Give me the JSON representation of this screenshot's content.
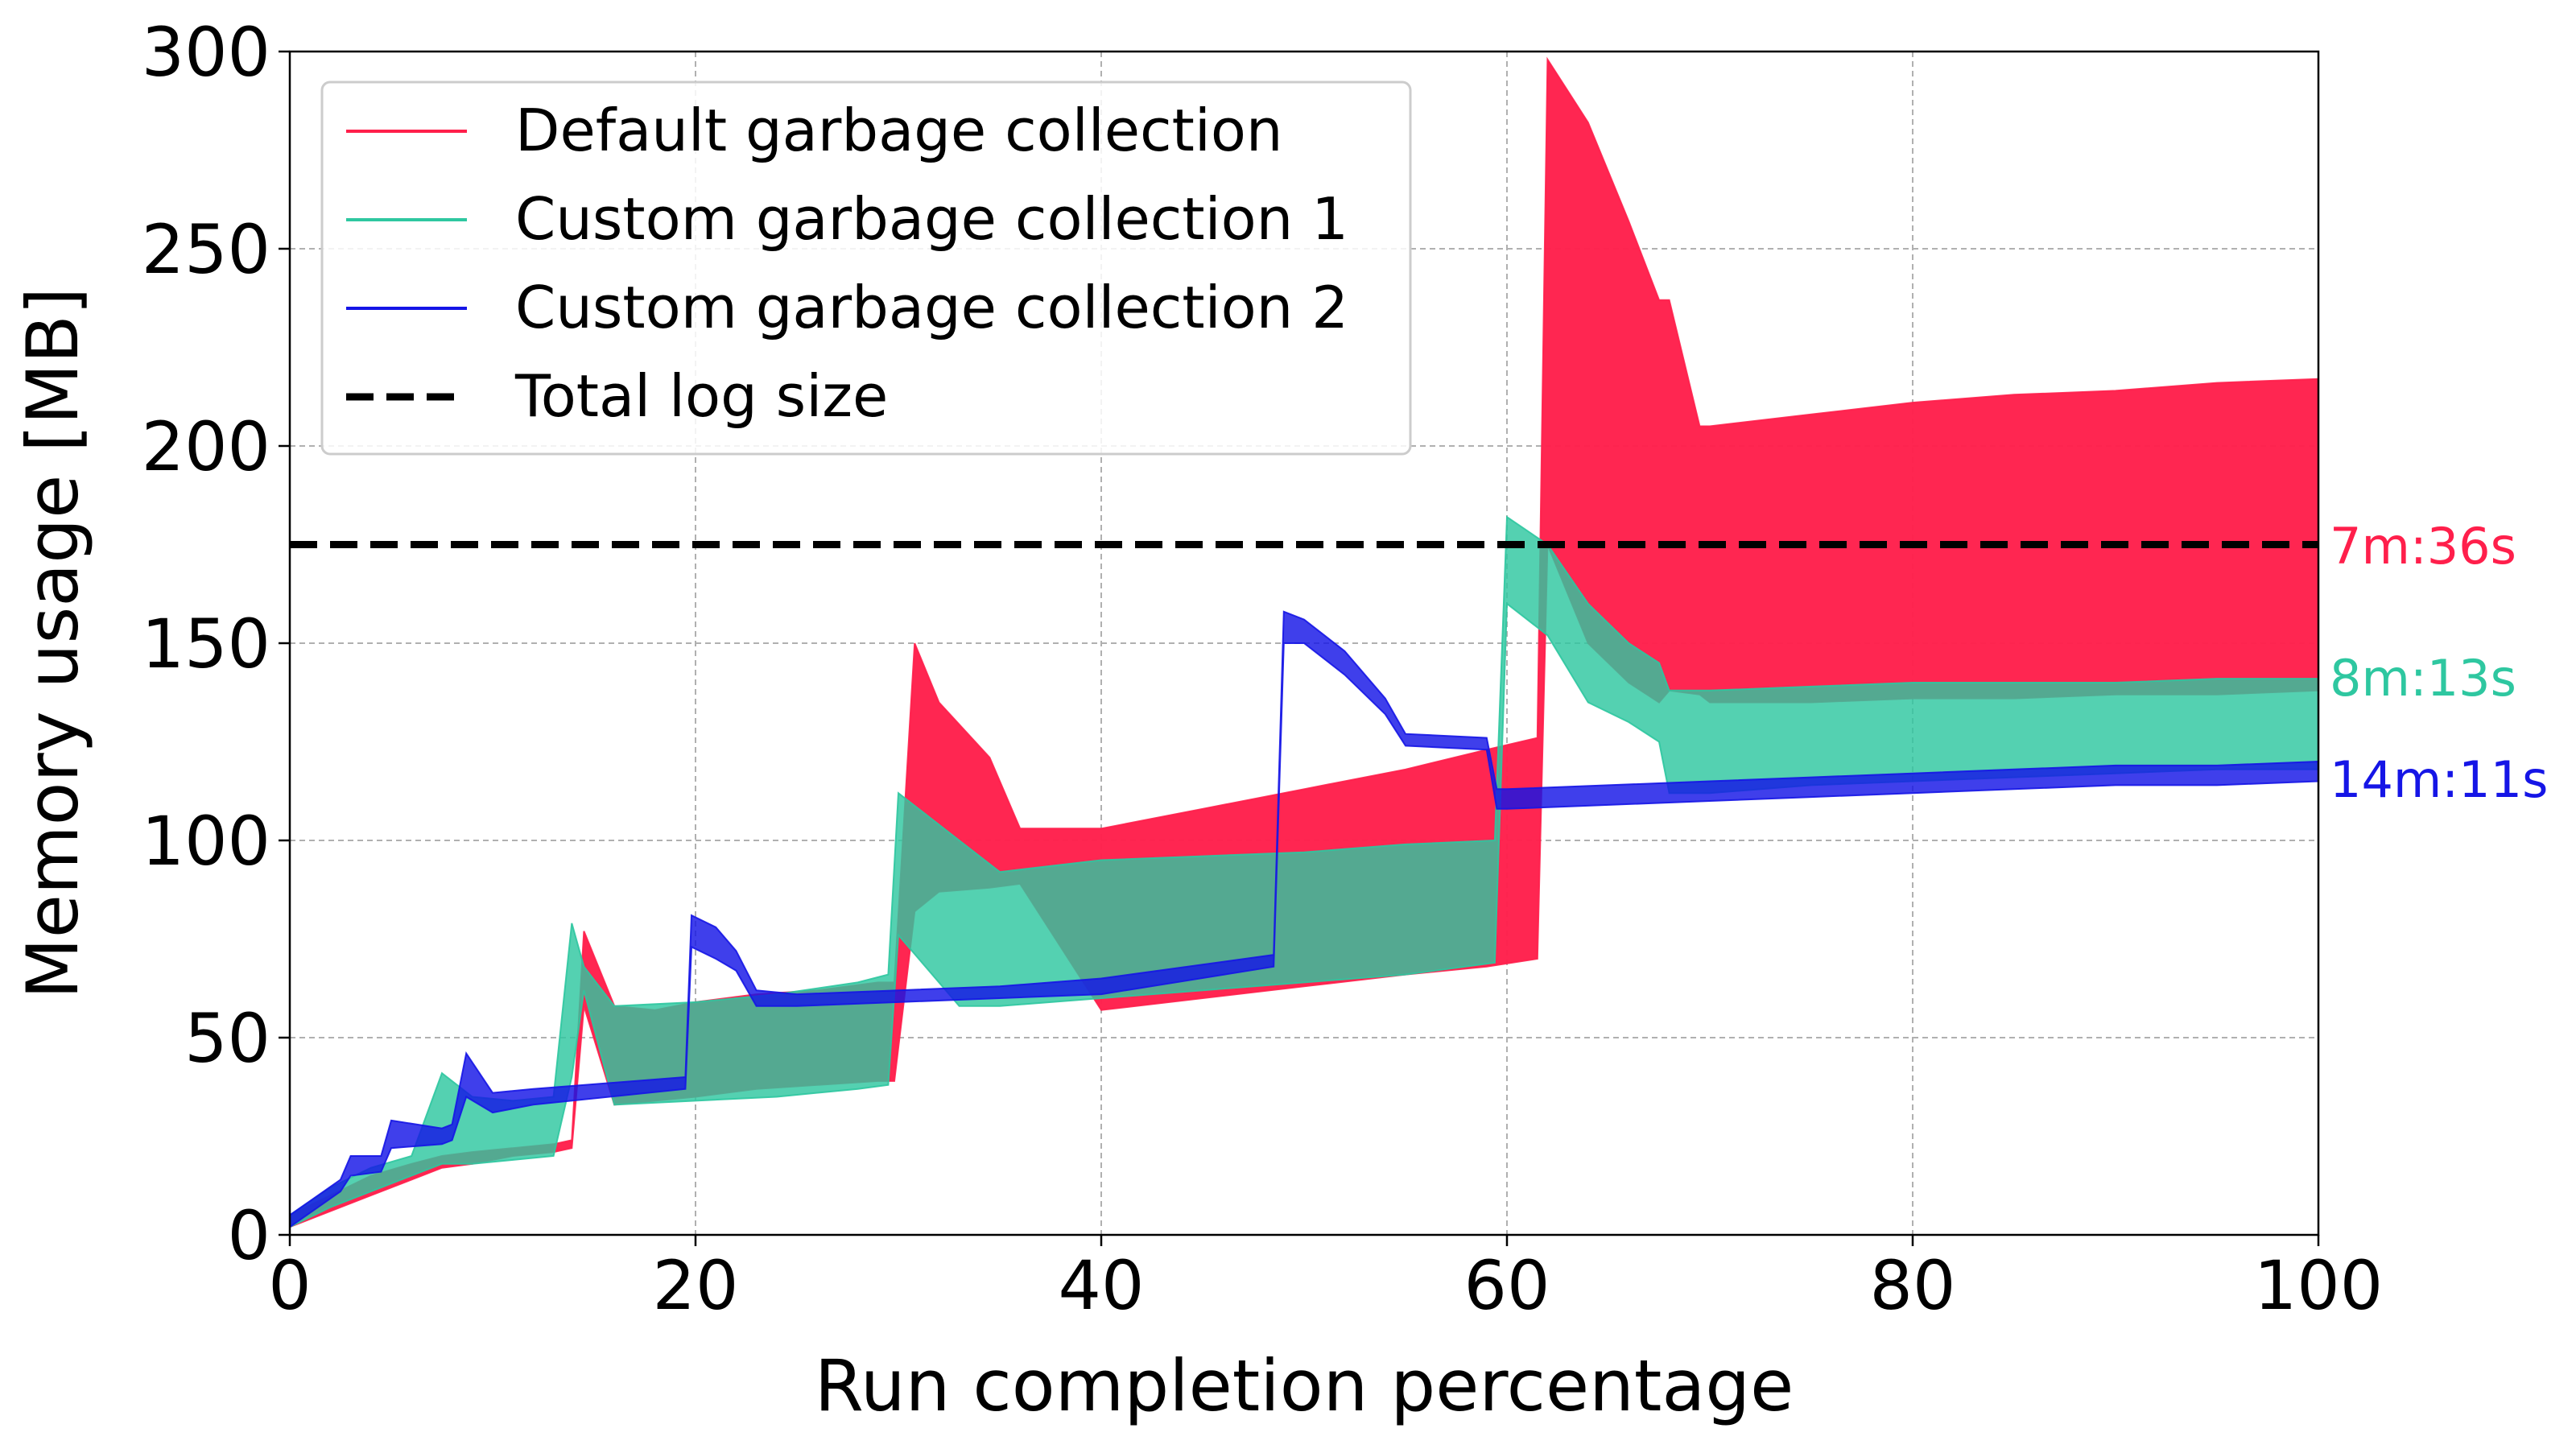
{
  "chart_data": {
    "type": "line",
    "title": "",
    "xlabel": "Run completion percentage",
    "ylabel": "Memory usage [MB]",
    "xlim": [
      0,
      100
    ],
    "ylim": [
      0,
      300
    ],
    "x_ticks": [
      "0",
      "20",
      "40",
      "60",
      "80",
      "100"
    ],
    "y_ticks": [
      "0",
      "50",
      "100",
      "150",
      "200",
      "250",
      "300"
    ],
    "grid": true,
    "legend_position": "top-left",
    "reference_lines": [
      {
        "name": "Total log size",
        "y": 175,
        "style": "dashed",
        "color": "#000000"
      }
    ],
    "series": [
      {
        "name": "Default garbage collection",
        "color": "#ff1f4b",
        "end_label": "7m:36s",
        "x": [
          0,
          2,
          4,
          6,
          7.5,
          9,
          11,
          13,
          13.9,
          14.5,
          16,
          18,
          20,
          23,
          26,
          29,
          29.8,
          30.8,
          32,
          34.5,
          36,
          40,
          45,
          50,
          55,
          59,
          61.5,
          62,
          64,
          66,
          67.5,
          68,
          69.5,
          70,
          75,
          80,
          85,
          90,
          95,
          100
        ],
        "low": [
          2,
          6,
          10,
          14,
          17,
          18,
          20,
          21,
          22,
          58,
          33,
          34,
          35,
          37,
          38,
          39,
          39,
          82,
          87,
          88,
          89,
          57,
          60,
          63,
          66,
          68,
          70,
          175,
          150,
          140,
          135,
          138,
          137,
          135,
          135,
          136,
          136,
          137,
          137,
          138
        ],
        "high": [
          5,
          10,
          15,
          18,
          20,
          21,
          22,
          23,
          24,
          77,
          58,
          57,
          59,
          61,
          62,
          64,
          64,
          150,
          135,
          121,
          103,
          103,
          108,
          113,
          118,
          123,
          126,
          298,
          282,
          257,
          237,
          237,
          205,
          205,
          208,
          211,
          213,
          214,
          216,
          217
        ]
      },
      {
        "name": "Custom garbage collection 1",
        "color": "#2ec7a0",
        "end_label": "8m:13s",
        "x": [
          0,
          2,
          4,
          6,
          7.5,
          9,
          11,
          13,
          13.9,
          14.5,
          16,
          20,
          24,
          28,
          29.5,
          30,
          33,
          35,
          40,
          45,
          50,
          55,
          59.4,
          60,
          62,
          64,
          66,
          67.5,
          68,
          70,
          75,
          80,
          85,
          90,
          95,
          100
        ],
        "low": [
          2,
          7,
          11,
          15,
          18,
          18,
          19,
          20,
          40,
          62,
          33,
          34,
          35,
          37,
          38,
          76,
          58,
          58,
          60,
          62,
          64,
          66,
          69,
          160,
          152,
          135,
          130,
          125,
          112,
          112,
          114,
          115,
          116,
          117,
          118,
          118
        ],
        "high": [
          5,
          12,
          17,
          20,
          41,
          35,
          34,
          35,
          79,
          68,
          58,
          59,
          61,
          64,
          66,
          112,
          100,
          92,
          95,
          96,
          97,
          99,
          100,
          182,
          175,
          160,
          150,
          145,
          138,
          138,
          139,
          140,
          140,
          140,
          141,
          141
        ]
      },
      {
        "name": "Custom garbage collection 2",
        "color": "#1515e6",
        "end_label": "14m:11s",
        "x": [
          0,
          2.5,
          3,
          4.5,
          5,
          7.5,
          8,
          8.7,
          10,
          12,
          19.5,
          19.8,
          21,
          22,
          23,
          25,
          30,
          35,
          40,
          48.5,
          49,
          50,
          52,
          54,
          55,
          59,
          59.5,
          60,
          65,
          70,
          75,
          80,
          85,
          90,
          95,
          100
        ],
        "low": [
          2,
          11,
          15,
          16,
          22,
          23,
          24,
          35,
          31,
          33,
          37,
          73,
          70,
          67,
          58,
          58,
          59,
          60,
          61,
          68,
          150,
          150,
          142,
          132,
          124,
          123,
          108,
          108,
          109,
          110,
          111,
          112,
          113,
          114,
          114,
          115
        ],
        "high": [
          5,
          14,
          20,
          20,
          29,
          27,
          28,
          46,
          36,
          37,
          40,
          81,
          78,
          72,
          62,
          61,
          62,
          63,
          65,
          71,
          158,
          156,
          148,
          136,
          127,
          126,
          113,
          113,
          114,
          115,
          116,
          117,
          118,
          119,
          119,
          120
        ]
      }
    ]
  }
}
